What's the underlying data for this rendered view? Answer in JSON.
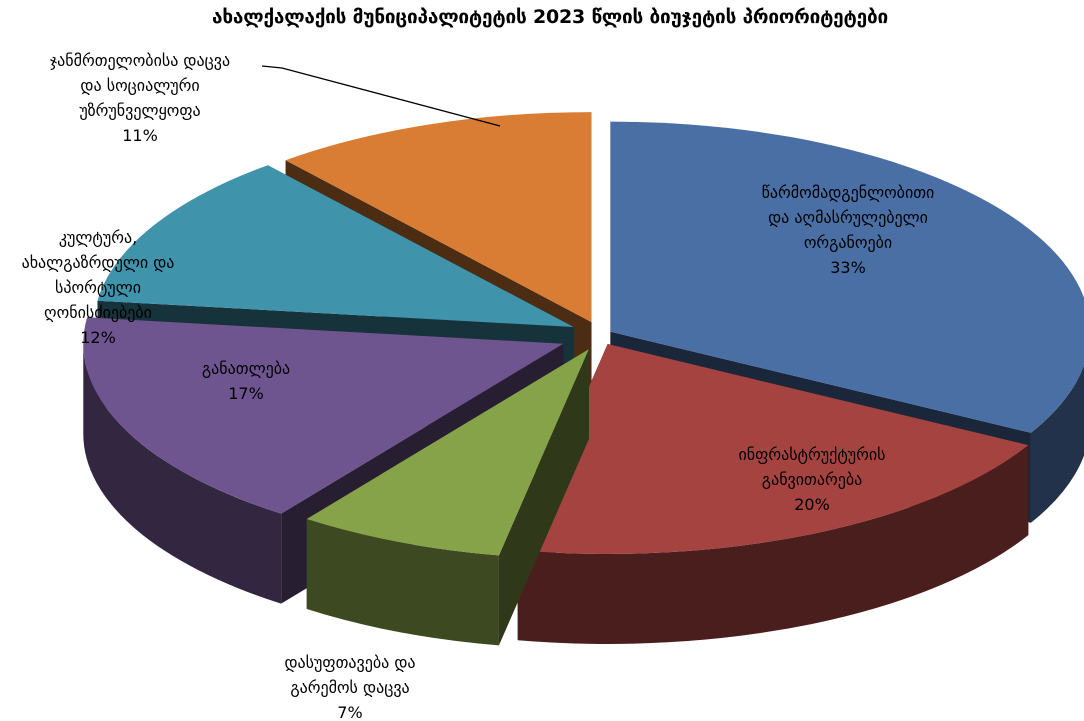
{
  "chart_data": {
    "type": "pie",
    "title": "ახალქალაქის მუნიციპალიტეტის 2023 წლის ბიუჯეტის პრიორიტეტები",
    "slices": [
      {
        "label_lines": [
          "წარმომადგენლობითი",
          "და აღმასრულებელი",
          "ორგანოები"
        ],
        "value": 33,
        "pct": "33%",
        "color": "#4a6fa5"
      },
      {
        "label_lines": [
          "ინფრასტრუქტურის",
          "განვითარება"
        ],
        "value": 20,
        "pct": "20%",
        "color": "#a54341"
      },
      {
        "label_lines": [
          "დასუფთავება და",
          "გარემოს დაცვა"
        ],
        "value": 7,
        "pct": "7%",
        "color": "#86a34a"
      },
      {
        "label_lines": [
          "განათლება"
        ],
        "value": 17,
        "pct": "17%",
        "color": "#6e5590"
      },
      {
        "label_lines": [
          "კულტურა,",
          "ახალგაზრდული და",
          "სპორტული",
          "ღონისძიებები"
        ],
        "value": 12,
        "pct": "12%",
        "color": "#3f93ab"
      },
      {
        "label_lines": [
          "ჯანმრთელობისა დაცვა",
          "და სოციალური",
          "უზრუნველყოფა"
        ],
        "value": 11,
        "pct": "11%",
        "color": "#d97d35"
      }
    ],
    "exploded": true,
    "style": "3d"
  }
}
